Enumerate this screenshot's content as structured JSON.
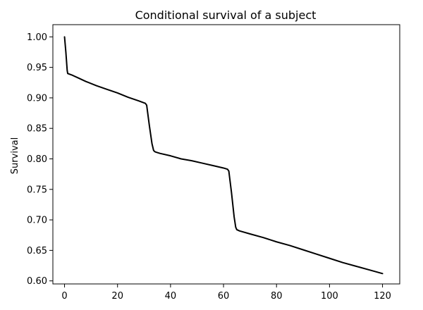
{
  "chart_data": {
    "type": "line",
    "title": "Conditional survival of a subject",
    "xlabel": "",
    "ylabel": "Survival",
    "xlim": [
      -4.4,
      126.5
    ],
    "ylim": [
      0.595,
      1.02
    ],
    "xticks": [
      0,
      20,
      40,
      60,
      80,
      100,
      120
    ],
    "yticks": [
      0.6,
      0.65,
      0.7,
      0.75,
      0.8,
      0.85,
      0.9,
      0.95,
      1.0
    ],
    "grid": false,
    "series": [
      {
        "color": "#000000",
        "x": [
          0,
          0.5,
          1,
          1.2,
          3,
          5,
          8,
          12,
          16,
          20,
          24,
          28,
          30.5,
          31,
          32,
          33,
          33.6,
          34,
          34.5,
          36,
          40,
          44,
          48,
          52,
          56,
          60,
          61.5,
          62,
          63,
          64,
          64.6,
          65,
          66,
          70,
          75,
          80,
          85,
          90,
          95,
          100,
          105,
          110,
          115,
          120
        ],
        "y": [
          1.0,
          0.975,
          0.945,
          0.94,
          0.937,
          0.933,
          0.927,
          0.92,
          0.914,
          0.908,
          0.901,
          0.895,
          0.891,
          0.888,
          0.855,
          0.825,
          0.814,
          0.812,
          0.811,
          0.809,
          0.805,
          0.8,
          0.797,
          0.793,
          0.789,
          0.785,
          0.783,
          0.78,
          0.745,
          0.705,
          0.688,
          0.684,
          0.682,
          0.677,
          0.671,
          0.664,
          0.658,
          0.651,
          0.644,
          0.637,
          0.63,
          0.624,
          0.618,
          0.612
        ]
      }
    ]
  }
}
